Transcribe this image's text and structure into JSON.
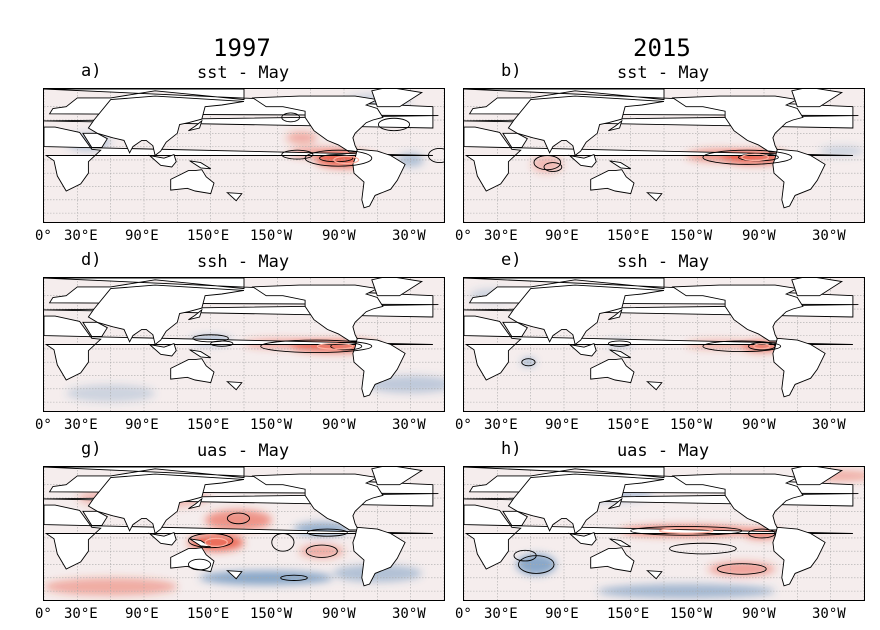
{
  "columns": [
    "1997",
    "2015"
  ],
  "panels": [
    {
      "id": "a",
      "letter": "a)",
      "title": "sst - May"
    },
    {
      "id": "b",
      "letter": "b)",
      "title": "sst - May"
    },
    {
      "id": "d",
      "letter": "d)",
      "title": "ssh - May"
    },
    {
      "id": "e",
      "letter": "e)",
      "title": "ssh - May"
    },
    {
      "id": "g",
      "letter": "g)",
      "title": "uas - May"
    },
    {
      "id": "h",
      "letter": "h)",
      "title": "uas - May"
    }
  ],
  "xticks": [
    "0°",
    "30°E",
    "90°E",
    "150°E",
    "150°W",
    "90°W",
    "30°W"
  ],
  "colors": {
    "positive": "#e8402a",
    "negative": "#3f78b0",
    "land": "#ffffff",
    "grid": "#aaaaaa",
    "contour": "#000000"
  }
}
